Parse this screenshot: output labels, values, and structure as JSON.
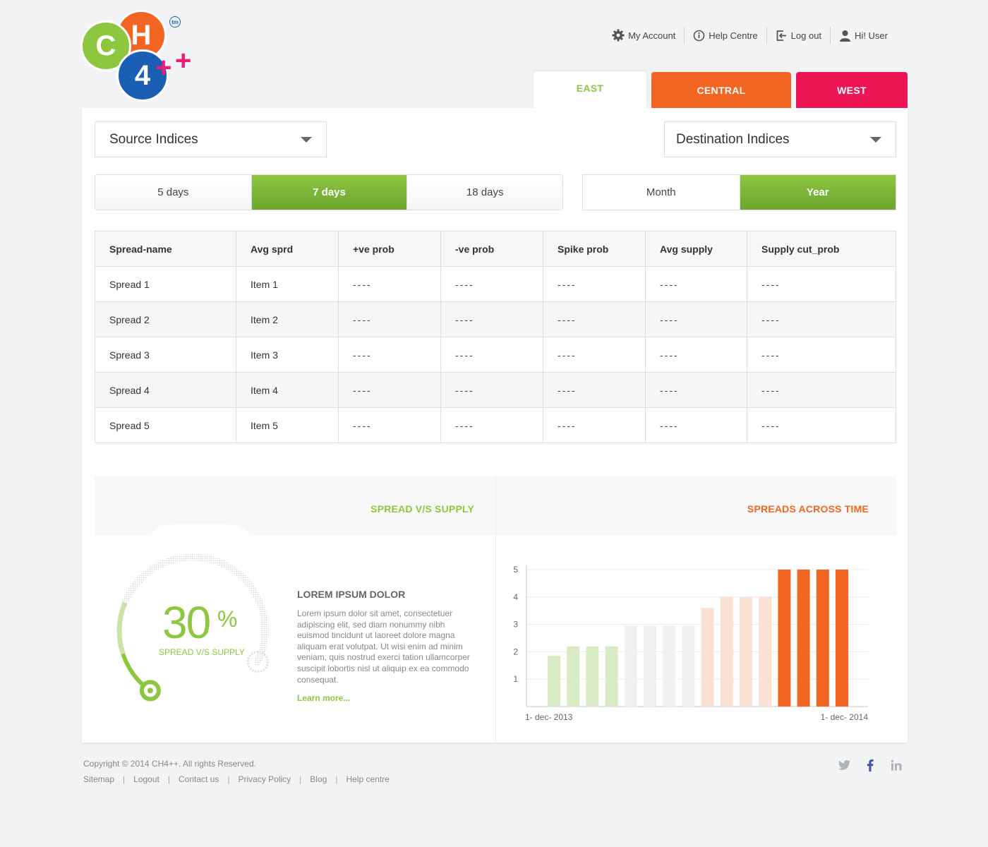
{
  "brand": {
    "logo_letter_c": "C",
    "logo_letter_h": "H",
    "logo_digit": "4",
    "logo_plus": "+",
    "logo_tm": "tm"
  },
  "top_links": {
    "account": "My Account",
    "help": "Help Centre",
    "logout": "Log out",
    "user": "Hi! User"
  },
  "region_tabs": [
    {
      "label": "EAST",
      "active": true
    },
    {
      "label": "CENTRAL",
      "active": false
    },
    {
      "label": "WEST",
      "active": false
    }
  ],
  "filters": {
    "source": "Source Indices",
    "destination": "Destination Indices"
  },
  "day_options": [
    {
      "label": "5 days",
      "active": false
    },
    {
      "label": "7 days",
      "active": true
    },
    {
      "label": "18 days",
      "active": false
    }
  ],
  "period_options": [
    {
      "label": "Month",
      "active": false
    },
    {
      "label": "Year",
      "active": true
    }
  ],
  "table": {
    "headers": [
      "Spread-name",
      "Avg sprd",
      "+ve prob",
      "-ve prob",
      "Spike prob",
      "Avg supply",
      "Supply cut_prob"
    ],
    "rows": [
      [
        "Spread 1",
        "Item 1",
        "----",
        "----",
        "----",
        "----",
        "----"
      ],
      [
        "Spread 2",
        "Item 2",
        "----",
        "----",
        "----",
        "----",
        "----"
      ],
      [
        "Spread 3",
        "Item 3",
        "----",
        "----",
        "----",
        "----",
        "----"
      ],
      [
        "Spread 4",
        "Item 4",
        "----",
        "----",
        "----",
        "----",
        "----"
      ],
      [
        "Spread 5",
        "Item 5",
        "----",
        "----",
        "----",
        "----",
        "----"
      ]
    ]
  },
  "spread_supply": {
    "title": "SPREAD V/S SUPPLY",
    "value": "30",
    "unit": "%",
    "progress": 0.3,
    "label": "SPREAD V/S SUPPLY",
    "heading": "LOREM IPSUM DOLOR",
    "body": "Lorem ipsum dolor sit amet, consectetuer adipiscing elit, sed diam nonummy nibh euismod tincidunt ut laoreet dolore magna aliquam erat volutpat. Ut wisi enim ad minim veniam, quis nostrud exerci tation ullamcorper suscipit lobortis nisl ut aliquip ex ea commodo consequat.",
    "link": "Learn more..."
  },
  "spreads_chart": {
    "title": "SPREADS ACROSS TIME",
    "colors": {
      "green": "#d8ebc4",
      "grey": "#f1f1f1",
      "peach": "#fbe0d4",
      "orange": "#f26522"
    }
  },
  "chart_data": {
    "type": "bar",
    "title": "SPREADS ACROSS TIME",
    "xlabel": "",
    "ylabel": "",
    "ylim": [
      0,
      5
    ],
    "yticks": [
      "1",
      "2",
      "3",
      "4",
      "5"
    ],
    "x_start_label": "1- dec- 2013",
    "x_end_label": "1- dec- 2014",
    "values": [
      1.85,
      2.2,
      2.2,
      2.2,
      2.95,
      2.95,
      2.95,
      2.95,
      3.6,
      4.0,
      4.0,
      4.0,
      5,
      5,
      5,
      5
    ],
    "bar_groups": [
      "green",
      "green",
      "green",
      "green",
      "grey",
      "grey",
      "grey",
      "grey",
      "peach",
      "peach",
      "peach",
      "peach",
      "orange",
      "orange",
      "orange",
      "orange"
    ]
  },
  "footer": {
    "copyright": "Copyright © 2014 CH4++. All rights Reserved.",
    "links": [
      "Sitemap",
      "Logout",
      "Contact us",
      "Privacy Policy",
      "Blog",
      "Help centre"
    ],
    "social": [
      "twitter-icon",
      "facebook-icon",
      "linkedin-icon"
    ]
  }
}
